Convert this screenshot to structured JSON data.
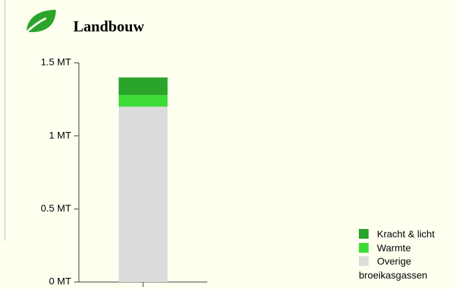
{
  "chart_data": {
    "type": "stacked-bar",
    "title": "Landbouw",
    "categories": [
      null
    ],
    "series": [
      {
        "name": "Overige broeikasgassen",
        "color": "#dcdcdc",
        "values": [
          1.2
        ]
      },
      {
        "name": "Warmte",
        "color": "#3ddc35",
        "values": [
          0.08
        ]
      },
      {
        "name": "Kracht & licht",
        "color": "#2aa52a",
        "values": [
          0.12
        ]
      }
    ],
    "ylim": [
      0,
      1.5
    ],
    "yticks": [
      {
        "value": 0,
        "label": "0 MT"
      },
      {
        "value": 0.5,
        "label": "0.5 MT"
      },
      {
        "value": 1,
        "label": "1 MT"
      },
      {
        "value": 1.5,
        "label": "1.5 MT"
      }
    ]
  }
}
